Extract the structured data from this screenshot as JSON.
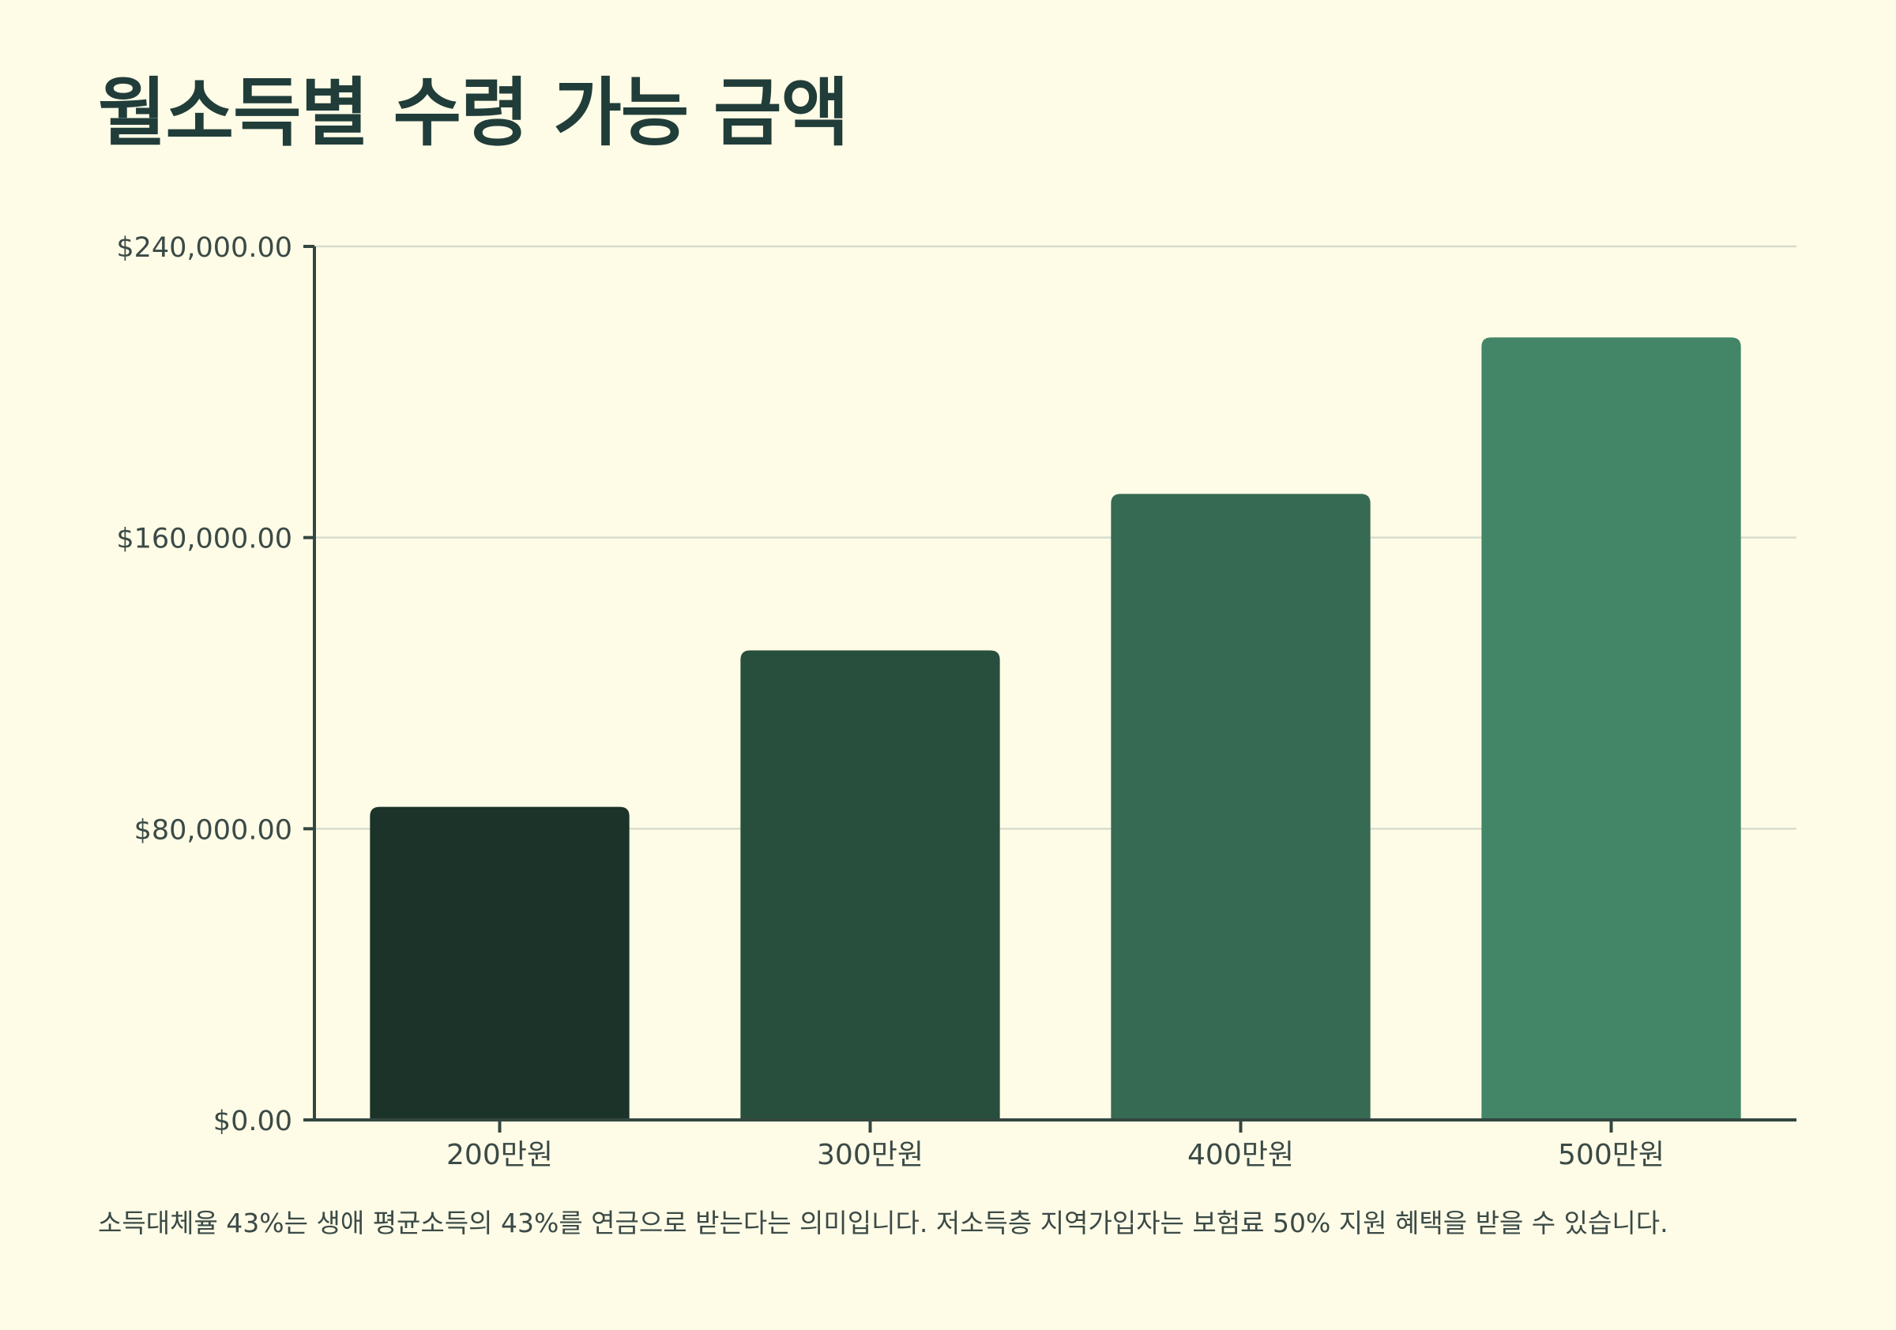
{
  "title": "월소득별 수령 가능 금액",
  "footnote": "소득대체율 43%는 생애 평균소득의 43%를 연금으로 받는다는 의미입니다. 저소득층 지역가입자는 보험료 50% 지원 혜택을 받을 수 있습니다.",
  "colors": {
    "background": "#FEFCE6",
    "text": "#213D3A",
    "axis": "#344640",
    "grid": "#D7DDCF",
    "bars": [
      "#1B3328",
      "#284F3E",
      "#376A53",
      "#438667"
    ]
  },
  "chart_data": {
    "type": "bar",
    "title": "월소득별 수령 가능 금액",
    "xlabel": "",
    "ylabel": "",
    "categories": [
      "200만원",
      "300만원",
      "400만원",
      "500만원"
    ],
    "values": [
      86000,
      129000,
      172000,
      215000
    ],
    "ylim": [
      0,
      240000
    ],
    "yticks": [
      0,
      80000,
      160000,
      240000
    ],
    "ytick_labels": [
      "$0.00",
      "$80,000.00",
      "$160,000.00",
      "$240,000.00"
    ],
    "grid": true,
    "legend": "none"
  }
}
